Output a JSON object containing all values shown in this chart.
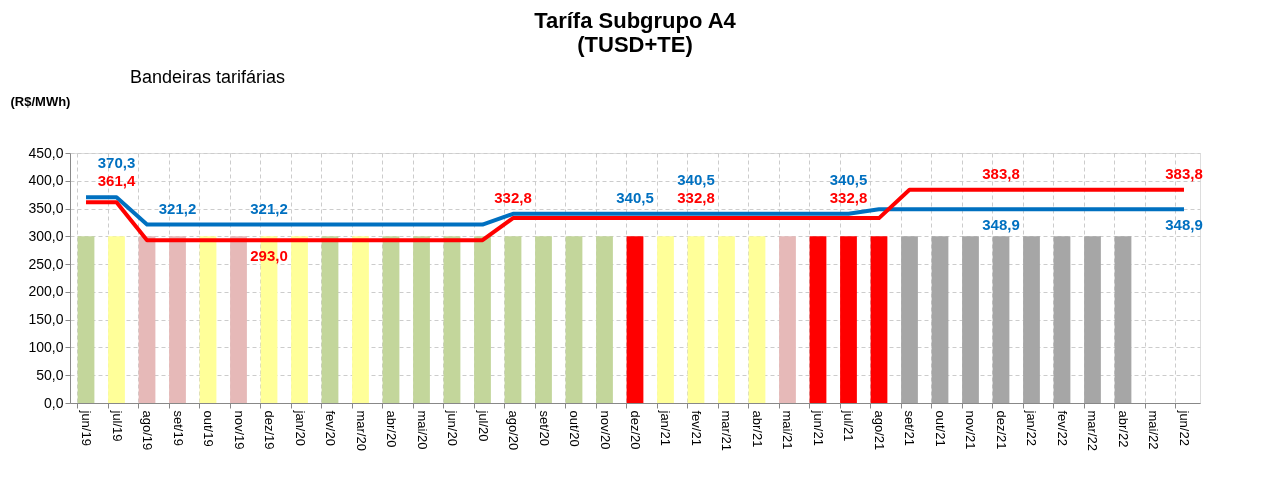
{
  "chart_data": {
    "type": "line",
    "title": [
      "Tarífa Subgrupo A4",
      "(TUSD+TE)"
    ],
    "ylabel": "(R$/MWh)",
    "annotations": [
      "Bandeiras tarifárias"
    ],
    "categories": [
      "jun/19",
      "jul/19",
      "ago/19",
      "set/19",
      "out/19",
      "nov/19",
      "dez/19",
      "jan/20",
      "fev/20",
      "mar/20",
      "abr/20",
      "mai/20",
      "jun/20",
      "jul/20",
      "ago/20",
      "set/20",
      "out/20",
      "nov/20",
      "dez/20",
      "jan/21",
      "fev/21",
      "mar/21",
      "abr/21",
      "mai/21",
      "jun/21",
      "jul/21",
      "ago/21",
      "set/21",
      "out/21",
      "nov/21",
      "dez/21",
      "jan/22",
      "fev/22",
      "mar/22",
      "abr/22",
      "mai/22",
      "jun/22"
    ],
    "ylim": [
      0,
      450
    ],
    "yticks": [
      {
        "value": 0,
        "label": "0,0"
      },
      {
        "value": 50,
        "label": "50,0"
      },
      {
        "value": 100,
        "label": "100,0"
      },
      {
        "value": 150,
        "label": "150,0"
      },
      {
        "value": 200,
        "label": "200,0"
      },
      {
        "value": 250,
        "label": "250,0"
      },
      {
        "value": 300,
        "label": "300,0"
      },
      {
        "value": 350,
        "label": "350,0"
      },
      {
        "value": 400,
        "label": "400,0"
      },
      {
        "value": 450,
        "label": "450,0"
      }
    ],
    "grid": true,
    "marker": "none",
    "line_style": "solid",
    "series": [
      {
        "type": "bar",
        "values": [
          300,
          300,
          300,
          300,
          300,
          300,
          300,
          300,
          300,
          300,
          300,
          300,
          300,
          300,
          300,
          300,
          300,
          300,
          300,
          300,
          300,
          300,
          300,
          300,
          300,
          300,
          300,
          300,
          300,
          300,
          300,
          300,
          300,
          300,
          300,
          null,
          null
        ],
        "colors": [
          "#c3d69b",
          "#ffff99",
          "#e6b9b8",
          "#e6b9b8",
          "#ffff99",
          "#e6b9b8",
          "#ffff99",
          "#ffff99",
          "#c3d69b",
          "#ffff99",
          "#c3d69b",
          "#c3d69b",
          "#c3d69b",
          "#c3d69b",
          "#c3d69b",
          "#c3d69b",
          "#c3d69b",
          "#c3d69b",
          "#ff0000",
          "#ffff99",
          "#ffff99",
          "#ffff99",
          "#ffff99",
          "#e6b9b8",
          "#ff0000",
          "#ff0000",
          "#ff0000",
          "#a6a6a6",
          "#a6a6a6",
          "#a6a6a6",
          "#a6a6a6",
          "#a6a6a6",
          "#a6a6a6",
          "#a6a6a6",
          "#a6a6a6",
          null,
          null
        ]
      },
      {
        "color": "#0070c0",
        "values": [
          370.3,
          370.3,
          321.2,
          321.2,
          321.2,
          321.2,
          321.2,
          321.2,
          321.2,
          321.2,
          321.2,
          321.2,
          321.2,
          321.2,
          340.5,
          340.5,
          340.5,
          340.5,
          340.5,
          340.5,
          340.5,
          340.5,
          340.5,
          340.5,
          340.5,
          340.5,
          348.9,
          348.9,
          348.9,
          348.9,
          348.9,
          348.9,
          348.9,
          348.9,
          348.9,
          348.9,
          348.9
        ],
        "value_labels": [
          null,
          "370,3",
          null,
          "321,2",
          null,
          null,
          "321,2",
          null,
          null,
          null,
          null,
          null,
          null,
          null,
          null,
          null,
          null,
          null,
          "340,5",
          null,
          "340,5",
          null,
          null,
          null,
          null,
          "340,5",
          null,
          null,
          null,
          null,
          "348,9",
          null,
          null,
          null,
          null,
          null,
          "348,9"
        ]
      },
      {
        "color": "#ff0000",
        "values": [
          361.4,
          361.4,
          293.0,
          293.0,
          293.0,
          293.0,
          293.0,
          293.0,
          293.0,
          293.0,
          293.0,
          293.0,
          293.0,
          293.0,
          332.8,
          332.8,
          332.8,
          332.8,
          332.8,
          332.8,
          332.8,
          332.8,
          332.8,
          332.8,
          332.8,
          332.8,
          332.8,
          383.8,
          383.8,
          383.8,
          383.8,
          383.8,
          383.8,
          383.8,
          383.8,
          383.8,
          383.8
        ],
        "value_labels": [
          null,
          "361,4",
          null,
          null,
          null,
          null,
          "293,0",
          null,
          null,
          null,
          null,
          null,
          null,
          null,
          "332,8",
          null,
          null,
          null,
          null,
          null,
          "332,8",
          null,
          null,
          null,
          null,
          "332,8",
          null,
          null,
          null,
          null,
          "383,8",
          null,
          null,
          null,
          null,
          null,
          "383,8"
        ]
      }
    ]
  }
}
